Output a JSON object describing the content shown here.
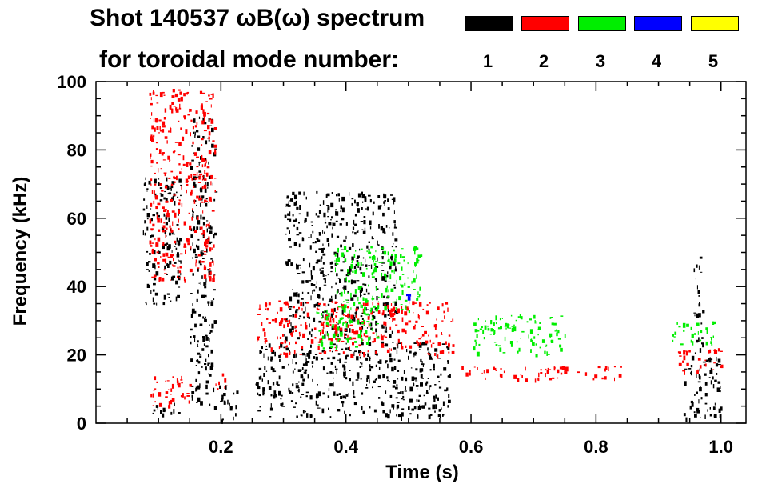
{
  "title_line1": "Shot 140537 ωB(ω) spectrum",
  "title_line2": "for toroidal mode number:",
  "legend": [
    {
      "label": "1",
      "color": "#000000"
    },
    {
      "label": "2",
      "color": "#ff0000"
    },
    {
      "label": "3",
      "color": "#00ee00"
    },
    {
      "label": "4",
      "color": "#0000ff"
    },
    {
      "label": "5",
      "color": "#ffff00"
    }
  ],
  "chart_data": {
    "type": "scatter",
    "title": "Shot 140537 ωB(ω) spectrum",
    "xlabel": "Time (s)",
    "ylabel": "Frequency (kHz)",
    "xlim": [
      0.0,
      1.04
    ],
    "ylim": [
      0,
      100
    ],
    "x_ticks": [
      {
        "value": 0.2,
        "label": "0.2"
      },
      {
        "value": 0.4,
        "label": "0.4"
      },
      {
        "value": 0.6,
        "label": "0.6"
      },
      {
        "value": 0.8,
        "label": "0.8"
      },
      {
        "value": 1.0,
        "label": "1.0"
      }
    ],
    "y_ticks": [
      {
        "value": 0,
        "label": "0"
      },
      {
        "value": 20,
        "label": "20"
      },
      {
        "value": 40,
        "label": "40"
      },
      {
        "value": 60,
        "label": "60"
      },
      {
        "value": 80,
        "label": "80"
      },
      {
        "value": 100,
        "label": "100"
      }
    ],
    "series": [
      {
        "name": "1",
        "color": "#000000",
        "features": [
          {
            "t0": 0.075,
            "t1": 0.135,
            "f0": 35,
            "f1": 72
          },
          {
            "t0": 0.09,
            "t1": 0.14,
            "f0": 2,
            "f1": 6
          },
          {
            "t0": 0.15,
            "t1": 0.19,
            "f0": 5,
            "f1": 90
          },
          {
            "t0": 0.195,
            "t1": 0.225,
            "f0": 1,
            "f1": 12
          },
          {
            "t0": 0.255,
            "t1": 0.565,
            "f0": 2,
            "f1": 24
          },
          {
            "t0": 0.3,
            "t1": 0.48,
            "f0": 25,
            "f1": 68
          },
          {
            "t0": 0.94,
            "t1": 1.0,
            "f0": 1,
            "f1": 20
          },
          {
            "t0": 0.955,
            "t1": 0.97,
            "f0": 20,
            "f1": 49
          }
        ]
      },
      {
        "name": "2",
        "color": "#ff0000",
        "features": [
          {
            "t0": 0.085,
            "t1": 0.19,
            "f0": 42,
            "f1": 98
          },
          {
            "t0": 0.085,
            "t1": 0.15,
            "f0": 5,
            "f1": 14
          },
          {
            "t0": 0.19,
            "t1": 0.21,
            "f0": 10,
            "f1": 16
          },
          {
            "t0": 0.255,
            "t1": 0.57,
            "f0": 20,
            "f1": 36
          },
          {
            "t0": 0.58,
            "t1": 0.84,
            "f0": 13,
            "f1": 17
          },
          {
            "t0": 0.93,
            "t1": 1.0,
            "f0": 15,
            "f1": 22
          }
        ]
      },
      {
        "name": "3",
        "color": "#00ee00",
        "features": [
          {
            "t0": 0.38,
            "t1": 0.52,
            "f0": 33,
            "f1": 52
          },
          {
            "t0": 0.35,
            "t1": 0.45,
            "f0": 22,
            "f1": 34
          },
          {
            "t0": 0.6,
            "t1": 0.75,
            "f0": 20,
            "f1": 32
          },
          {
            "t0": 0.92,
            "t1": 0.99,
            "f0": 23,
            "f1": 30
          }
        ]
      },
      {
        "name": "4",
        "color": "#0000ff",
        "features": [
          {
            "t0": 0.495,
            "t1": 0.5,
            "f0": 37,
            "f1": 38
          }
        ]
      },
      {
        "name": "5",
        "color": "#ffff00",
        "features": []
      }
    ]
  }
}
